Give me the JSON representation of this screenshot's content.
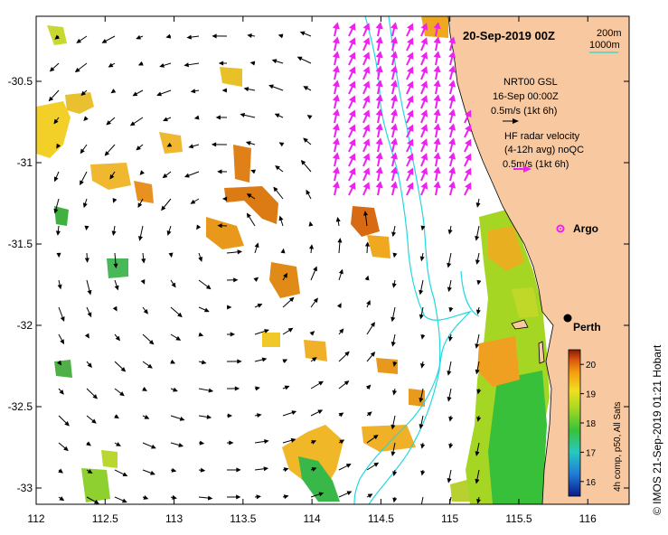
{
  "map": {
    "title": "20-Sep-2019 00Z",
    "x_ticks": [
      "112",
      "112.5",
      "113",
      "113.5",
      "114",
      "114.5",
      "115",
      "115.5",
      "116"
    ],
    "x_tick_values": [
      112,
      112.5,
      113,
      113.5,
      114,
      114.5,
      115,
      115.5,
      116
    ],
    "y_ticks": [
      "-30.5",
      "-31",
      "-31.5",
      "-32",
      "-32.5",
      "-33"
    ],
    "y_tick_values": [
      -30.5,
      -31,
      -31.5,
      -32,
      -32.5,
      -33
    ],
    "lon_range": [
      112,
      116.3
    ],
    "lat_range": [
      -33.1,
      -30.1
    ],
    "land_color": "#f8c8a0",
    "contour_color": "#22d8e0"
  },
  "legend": {
    "depth_200": "200m",
    "depth_1000": "1000m",
    "nrt_line1": "NRT00 GSL",
    "nrt_line2": "16-Sep 00:00Z",
    "nrt_scale": "0.5m/s (1kt 6h)",
    "hf_line1": "HF radar velocity",
    "hf_line2": "(4-12h avg) noQC",
    "hf_scale": "0.5m/s (1kt 6h)",
    "hf_color": "#ee22ee"
  },
  "places": {
    "argo": "Argo",
    "perth": "Perth"
  },
  "colorbar": {
    "ticks": [
      "20",
      "19",
      "18",
      "17",
      "16"
    ],
    "tick_values": [
      20,
      19,
      18,
      17,
      16
    ],
    "range": [
      15.5,
      20.5
    ],
    "label": "4h comp, p50, All Sats"
  },
  "credit": "© IMOS 21-Sep-2019 01:21 Hobart"
}
